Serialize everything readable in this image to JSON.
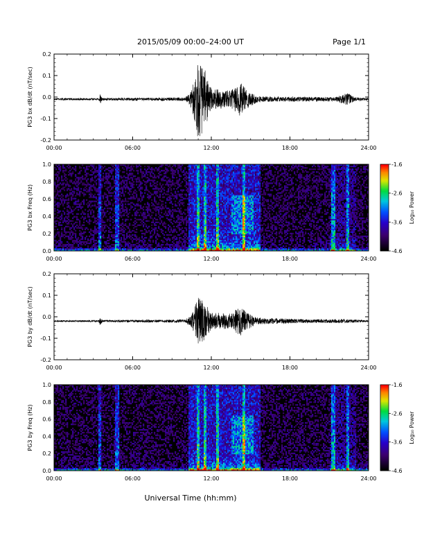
{
  "header": {
    "title": "2015/05/09  00:00–24:00 UT",
    "page": "Page 1/1"
  },
  "footer": {
    "xlabel": "Universal Time (hh:mm)"
  },
  "colors": {
    "trace": "#000000",
    "spectrogram_background": "#000000"
  },
  "chart_data": [
    {
      "type": "line",
      "id": "bx-waveform",
      "ylabel": "PG3 bx dB/dt (nT/sec)",
      "xlabel": "",
      "x_ticks": [
        "00:00",
        "06:00",
        "12:00",
        "18:00",
        "24:00"
      ],
      "xlim_hours": [
        0,
        24
      ],
      "y_ticks": [
        "0.2",
        "0.1",
        "0.0",
        "-0.1",
        "-0.2"
      ],
      "ylim": [
        -0.2,
        0.2
      ],
      "baseline": -0.01,
      "activity_profile": [
        {
          "hour": 0.0,
          "amp": 0.005
        },
        {
          "hour": 3.4,
          "amp": 0.005
        },
        {
          "hour": 3.5,
          "amp": 0.025
        },
        {
          "hour": 3.7,
          "amp": 0.006
        },
        {
          "hour": 10.0,
          "amp": 0.008
        },
        {
          "hour": 10.4,
          "amp": 0.03
        },
        {
          "hour": 10.8,
          "amp": 0.12
        },
        {
          "hour": 11.0,
          "amp": 0.19
        },
        {
          "hour": 11.5,
          "amp": 0.14
        },
        {
          "hour": 12.0,
          "amp": 0.05
        },
        {
          "hour": 13.5,
          "amp": 0.04
        },
        {
          "hour": 14.2,
          "amp": 0.08
        },
        {
          "hour": 14.6,
          "amp": 0.05
        },
        {
          "hour": 15.5,
          "amp": 0.015
        },
        {
          "hour": 16.5,
          "amp": 0.012
        },
        {
          "hour": 21.5,
          "amp": 0.01
        },
        {
          "hour": 22.4,
          "amp": 0.03
        },
        {
          "hour": 22.9,
          "amp": 0.01
        },
        {
          "hour": 24.0,
          "amp": 0.005
        }
      ]
    },
    {
      "type": "heatmap",
      "id": "bx-spectrogram",
      "ylabel": "PG3 bx Freq (Hz)",
      "x_ticks": [
        "00:00",
        "06:00",
        "12:00",
        "18:00",
        "24:00"
      ],
      "xlim_hours": [
        0,
        24
      ],
      "y_ticks": [
        "1.0",
        "0.8",
        "0.6",
        "0.4",
        "0.2",
        "0.0"
      ],
      "ylim": [
        0,
        1.0
      ],
      "colorbar": {
        "label": "Log₁₀ Power",
        "ticks": [
          "-1.6",
          "-2.6",
          "-3.6",
          "-4.6"
        ],
        "range": [
          -4.6,
          -1.6
        ]
      },
      "bright_bands_hours": [
        3.5,
        4.8,
        11.0,
        11.5,
        12.5,
        14.5,
        21.3,
        22.4
      ]
    },
    {
      "type": "line",
      "id": "by-waveform",
      "ylabel": "PG3 by dB/dt (nT/sec)",
      "xlabel": "",
      "x_ticks": [
        "00:00",
        "06:00",
        "12:00",
        "18:00",
        "24:00"
      ],
      "xlim_hours": [
        0,
        24
      ],
      "y_ticks": [
        "0.2",
        "0.1",
        "0.0",
        "-0.1",
        "-0.2"
      ],
      "ylim": [
        -0.2,
        0.2
      ],
      "baseline": -0.02,
      "activity_profile": [
        {
          "hour": 0.0,
          "amp": 0.004
        },
        {
          "hour": 3.4,
          "amp": 0.004
        },
        {
          "hour": 3.5,
          "amp": 0.02
        },
        {
          "hour": 3.7,
          "amp": 0.005
        },
        {
          "hour": 10.0,
          "amp": 0.007
        },
        {
          "hour": 10.5,
          "amp": 0.03
        },
        {
          "hour": 11.0,
          "amp": 0.11
        },
        {
          "hour": 11.5,
          "amp": 0.09
        },
        {
          "hour": 12.0,
          "amp": 0.04
        },
        {
          "hour": 13.5,
          "amp": 0.035
        },
        {
          "hour": 14.2,
          "amp": 0.07
        },
        {
          "hour": 14.7,
          "amp": 0.04
        },
        {
          "hour": 15.5,
          "amp": 0.015
        },
        {
          "hour": 17.5,
          "amp": 0.012
        },
        {
          "hour": 19.5,
          "amp": 0.008
        },
        {
          "hour": 22.0,
          "amp": 0.01
        },
        {
          "hour": 24.0,
          "amp": 0.004
        }
      ]
    },
    {
      "type": "heatmap",
      "id": "by-spectrogram",
      "ylabel": "PG3 by Freq (Hz)",
      "x_ticks": [
        "00:00",
        "06:00",
        "12:00",
        "18:00",
        "24:00"
      ],
      "xlim_hours": [
        0,
        24
      ],
      "y_ticks": [
        "1.0",
        "0.8",
        "0.6",
        "0.4",
        "0.2",
        "0.0"
      ],
      "ylim": [
        0,
        1.0
      ],
      "colorbar": {
        "label": "Log₁₀ Power",
        "ticks": [
          "-1.6",
          "-2.6",
          "-3.6",
          "-4.6"
        ],
        "range": [
          -4.6,
          -1.6
        ]
      },
      "bright_bands_hours": [
        3.5,
        4.8,
        11.0,
        11.5,
        12.5,
        14.5,
        21.3,
        22.4
      ]
    }
  ]
}
